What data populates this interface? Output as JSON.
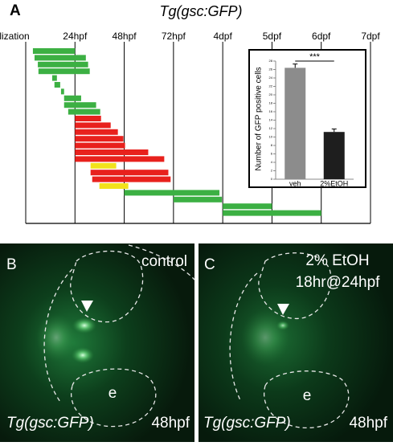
{
  "chart_data": [
    {
      "type": "timeline",
      "panel_label": "A",
      "title": "Tg(gsc:GFP)",
      "xlim": [
        0,
        168
      ],
      "xticks": [
        {
          "value": 0,
          "label": "Fertilization"
        },
        {
          "value": 24,
          "label": "24hpf"
        },
        {
          "value": 48,
          "label": "48hpf"
        },
        {
          "value": 72,
          "label": "72hpf"
        },
        {
          "value": 96,
          "label": "4dpf"
        },
        {
          "value": 120,
          "label": "5dpf"
        },
        {
          "value": 144,
          "label": "6dpf"
        },
        {
          "value": 168,
          "label": "7dpf"
        }
      ],
      "bars": [
        {
          "start": 3.5,
          "end": 24,
          "color": "#3cb043"
        },
        {
          "start": 4.3,
          "end": 29.3,
          "color": "#3cb043"
        },
        {
          "start": 5.9,
          "end": 30.4,
          "color": "#3cb043"
        },
        {
          "start": 6.2,
          "end": 31.2,
          "color": "#3cb043"
        },
        {
          "start": 12.9,
          "end": 15.2,
          "color": "#3cb043"
        },
        {
          "start": 14,
          "end": 16.8,
          "color": "#3cb043"
        },
        {
          "start": 17.2,
          "end": 18.7,
          "color": "#3cb043"
        },
        {
          "start": 18.7,
          "end": 27,
          "color": "#3cb043"
        },
        {
          "start": 18.7,
          "end": 34.3,
          "color": "#3cb043"
        },
        {
          "start": 20.7,
          "end": 36.3,
          "color": "#3cb043"
        },
        {
          "start": 24,
          "end": 36.7,
          "color": "#e8211d"
        },
        {
          "start": 24,
          "end": 41.4,
          "color": "#e8211d"
        },
        {
          "start": 24,
          "end": 44.9,
          "color": "#e8211d"
        },
        {
          "start": 24,
          "end": 47.6,
          "color": "#e8211d"
        },
        {
          "start": 24,
          "end": 48.4,
          "color": "#e8211d"
        },
        {
          "start": 24,
          "end": 59.7,
          "color": "#e8211d"
        },
        {
          "start": 24,
          "end": 67.5,
          "color": "#e8211d"
        },
        {
          "start": 31.6,
          "end": 44.1,
          "color": "#f2e21b"
        },
        {
          "start": 31.6,
          "end": 69.5,
          "color": "#e8211d"
        },
        {
          "start": 32.4,
          "end": 70.6,
          "color": "#e8211d"
        },
        {
          "start": 35.9,
          "end": 50,
          "color": "#f2e21b"
        },
        {
          "start": 48,
          "end": 94.4,
          "color": "#3cb043"
        },
        {
          "start": 72,
          "end": 95.6,
          "color": "#3cb043"
        },
        {
          "start": 96,
          "end": 120,
          "color": "#3cb043"
        },
        {
          "start": 96,
          "end": 144,
          "color": "#3cb043"
        }
      ]
    },
    {
      "type": "bar",
      "y_label": "Number of GFP positive cells",
      "categories": [
        "veh",
        "2%EtOH"
      ],
      "values": [
        26.4,
        11.2
      ],
      "errors": [
        0.9,
        0.7
      ],
      "colors": [
        "#8c8c8c",
        "#1e1e1e"
      ],
      "ylim": [
        0,
        28
      ],
      "yticks": [
        0,
        2,
        4,
        6,
        8,
        10,
        12,
        14,
        16,
        18,
        20,
        22,
        24,
        26,
        28
      ],
      "significance": "***"
    }
  ],
  "panels": [
    {
      "label": "B",
      "condition": "control",
      "region": "e",
      "line": "Tg(gsc:GFP)",
      "stage": "48hpf"
    },
    {
      "label": "C",
      "condition": [
        "2% EtOH",
        "18hr@24hpf"
      ],
      "region": "e",
      "line": "Tg(gsc:GFP)",
      "stage": "48hpf"
    }
  ]
}
